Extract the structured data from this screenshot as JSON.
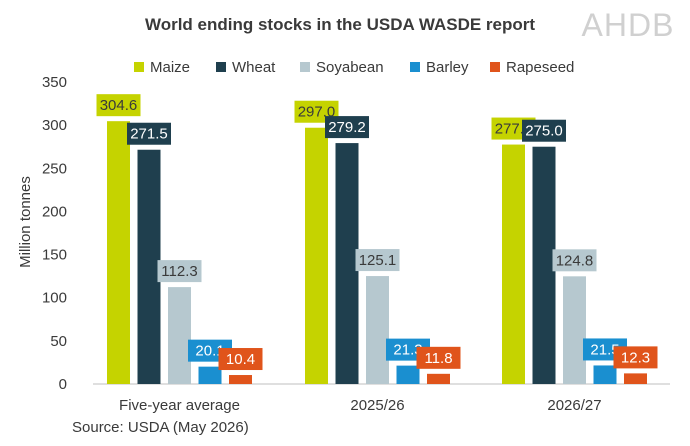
{
  "logo": "AHDB",
  "chart_data": {
    "type": "bar",
    "title": "World ending stocks in the USDA WASDE report",
    "ylabel": "Million tonnes",
    "xlabel": "",
    "ylim": [
      0,
      350
    ],
    "yticks": [
      0,
      50,
      100,
      150,
      200,
      250,
      300,
      350
    ],
    "grid": false,
    "legend_position": "top",
    "categories": [
      "Five-year average",
      "2025/26",
      "2026/27"
    ],
    "series": [
      {
        "name": "Maize",
        "color": "#c5d300",
        "label_text_color": "#3a3a3a",
        "values": [
          304.6,
          297.0,
          277.5
        ],
        "labels": [
          "304.6",
          "297.0",
          "277.5"
        ]
      },
      {
        "name": "Wheat",
        "color": "#1f3f4e",
        "label_text_color": "#ffffff",
        "values": [
          271.5,
          279.2,
          275.0
        ],
        "labels": [
          "271.5",
          "279.2",
          "275.0"
        ]
      },
      {
        "name": "Soyabean",
        "color": "#b6c8cf",
        "label_text_color": "#3a3a3a",
        "values": [
          112.3,
          125.1,
          124.8
        ],
        "labels": [
          "112.3",
          "125.1",
          "124.8"
        ]
      },
      {
        "name": "Barley",
        "color": "#1a8fd0",
        "label_text_color": "#ffffff",
        "values": [
          20.1,
          21.3,
          21.5
        ],
        "labels": [
          "20.1",
          "21.3",
          "21.5"
        ]
      },
      {
        "name": "Rapeseed",
        "color": "#e0541b",
        "label_text_color": "#ffffff",
        "values": [
          10.4,
          11.8,
          12.3
        ],
        "labels": [
          "10.4",
          "11.8",
          "12.3"
        ]
      }
    ],
    "source": "Source: USDA (May 2026)"
  }
}
